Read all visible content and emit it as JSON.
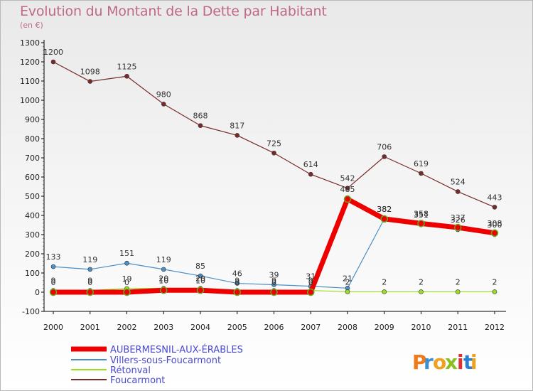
{
  "chart_data": {
    "type": "line",
    "title": "Evolution du Montant de la Dette par Habitant",
    "subtitle": "(en €)",
    "x": [
      "2000",
      "2001",
      "2002",
      "2003",
      "2004",
      "2005",
      "2006",
      "2007",
      "2008",
      "2009",
      "2010",
      "2011",
      "2012"
    ],
    "ylim": [
      -100,
      1300
    ],
    "yticks": [
      -100,
      0,
      100,
      200,
      300,
      400,
      500,
      600,
      700,
      800,
      900,
      1000,
      1100,
      1200,
      1300
    ],
    "grid": false,
    "legend_position": "bottom-left",
    "series": [
      {
        "name": "AUBERMESNIL-AUX-ÉRABLES",
        "color": "#ee0000",
        "values": [
          0,
          0,
          0,
          10,
          10,
          0,
          0,
          0,
          485,
          382,
          358,
          337,
          308
        ],
        "labels": [
          "0",
          "0",
          "0",
          "10",
          "10",
          "0",
          "0",
          "0",
          "485",
          "382",
          "358",
          "337",
          "308"
        ]
      },
      {
        "name": "Villers-sous-Foucarmont",
        "color": "#4a90c8",
        "values": [
          133,
          119,
          151,
          119,
          85,
          46,
          39,
          31,
          21,
          382,
          351,
          326,
          300
        ],
        "labels": [
          "133",
          "119",
          "151",
          "119",
          "85",
          "46",
          "39",
          "31",
          "21",
          "382",
          "351",
          "326",
          "300"
        ]
      },
      {
        "name": "Rétonval",
        "color": "#99dd22",
        "values": [
          9,
          9,
          19,
          20,
          20,
          9,
          9,
          9,
          2,
          2,
          2,
          2,
          2
        ],
        "labels": [
          "9",
          "9",
          "19",
          "20",
          "20",
          "9",
          "9",
          "9",
          "2",
          "2",
          "2",
          "2",
          "2"
        ]
      },
      {
        "name": "Foucarmont",
        "color": "#7a2a2a",
        "values": [
          1200,
          1098,
          1125,
          980,
          868,
          817,
          725,
          614,
          542,
          706,
          619,
          524,
          443
        ],
        "labels": [
          "1200",
          "1098",
          "1125",
          "980",
          "868",
          "817",
          "725",
          "614",
          "542",
          "706",
          "619",
          "524",
          "443"
        ]
      }
    ]
  },
  "logo": {
    "letters": [
      "P",
      "r",
      "o",
      "x",
      "i",
      "t",
      "i"
    ],
    "colors": [
      "#f07a1a",
      "#3a8fd0",
      "#f0a020",
      "#88c020",
      "#e03030",
      "#2a7fd0",
      "#f0a020"
    ]
  }
}
